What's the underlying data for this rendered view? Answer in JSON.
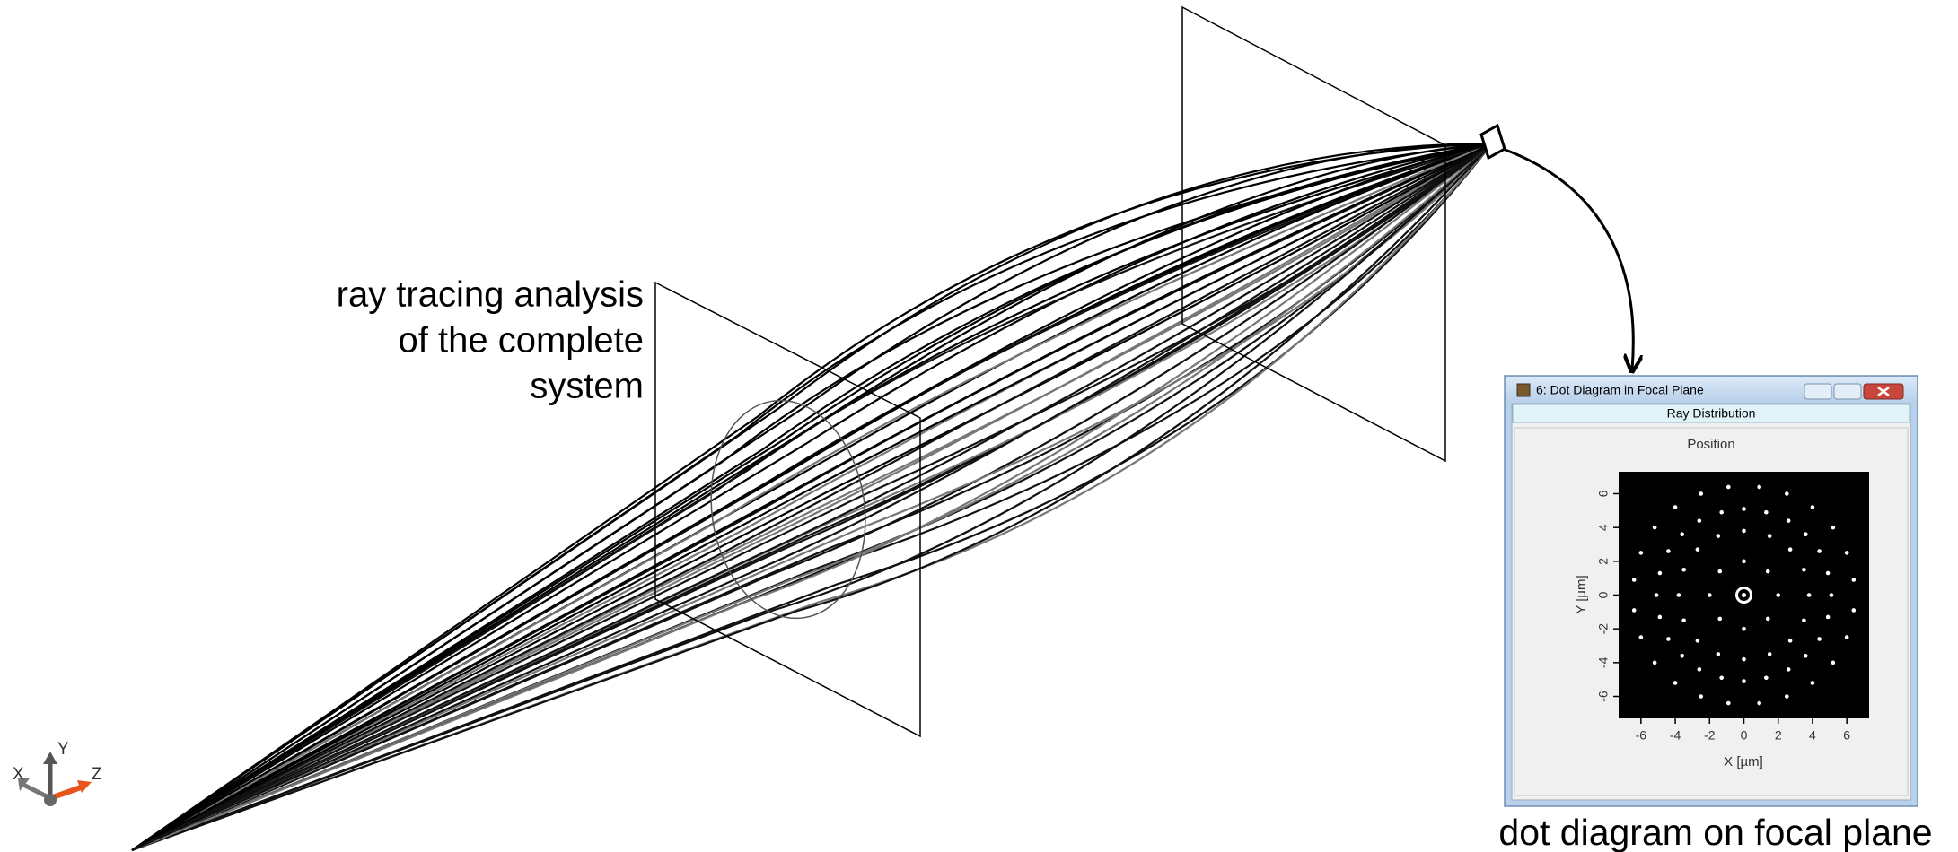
{
  "annotations": {
    "ray_tracing": [
      "ray tracing analysis",
      "of the complete",
      "system"
    ],
    "dot_diagram": "dot diagram on focal plane"
  },
  "axis_triad": {
    "x": "X",
    "y": "Y",
    "z": "Z"
  },
  "window": {
    "title": "6: Dot Diagram in Focal Plane",
    "tab": "Ray Distribution"
  },
  "chart_data": {
    "type": "scatter",
    "title": "Position",
    "x_label": "X [µm]",
    "y_label": "Y [µm]",
    "color": "#ffffff",
    "xlim": [
      -7.3,
      7.3
    ],
    "ylim": [
      -7.3,
      7.3
    ],
    "xticks": [
      -6,
      -4,
      -2,
      0,
      2,
      4,
      6
    ],
    "yticks": [
      -6,
      -4,
      -2,
      0,
      2,
      4,
      6
    ],
    "x": [
      2,
      1.4,
      0,
      -1.4,
      -2,
      -1.4,
      0,
      1.4,
      3.8,
      3.5,
      2.7,
      1.5,
      0,
      -1.5,
      -2.7,
      -3.5,
      -3.8,
      -3.5,
      -2.7,
      -1.5,
      0,
      1.5,
      2.7,
      3.5,
      5.1,
      4.9,
      4.4,
      3.6,
      2.6,
      1.3,
      0,
      -1.3,
      -2.6,
      -3.6,
      -4.4,
      -4.9,
      -5.1,
      -4.9,
      -4.4,
      -3.6,
      -2.6,
      -1.3,
      0,
      1.3,
      2.6,
      3.6,
      4.4,
      4.9,
      6.4,
      6.0,
      5.2,
      4.0,
      2.5,
      0.9,
      -0.9,
      -2.5,
      -4.0,
      -5.2,
      -6.0,
      -6.4,
      -6.4,
      -6.0,
      -5.2,
      -4.0,
      -2.5,
      -0.9,
      0.9,
      2.5,
      4.0,
      5.2,
      6.0,
      6.4
    ],
    "y": [
      0,
      1.4,
      2,
      1.4,
      0,
      -1.4,
      -2,
      -1.4,
      0,
      1.5,
      2.7,
      3.5,
      3.8,
      3.5,
      2.7,
      1.5,
      0,
      -1.5,
      -2.7,
      -3.5,
      -3.8,
      -3.5,
      -2.7,
      -1.5,
      0,
      1.3,
      2.6,
      3.6,
      4.4,
      4.9,
      5.1,
      4.9,
      4.4,
      3.6,
      2.6,
      1.3,
      0,
      -1.3,
      -2.6,
      -3.6,
      -4.4,
      -4.9,
      -5.1,
      -4.9,
      -4.4,
      -3.6,
      -2.6,
      -1.3,
      0.9,
      2.5,
      4.0,
      5.2,
      6.0,
      6.4,
      6.4,
      6.0,
      5.2,
      4.0,
      2.5,
      0.9,
      -0.9,
      -2.5,
      -4.0,
      -5.2,
      -6.0,
      -6.4,
      -6.4,
      -6.0,
      -5.2,
      -4.0,
      -2.5,
      -0.9
    ]
  }
}
